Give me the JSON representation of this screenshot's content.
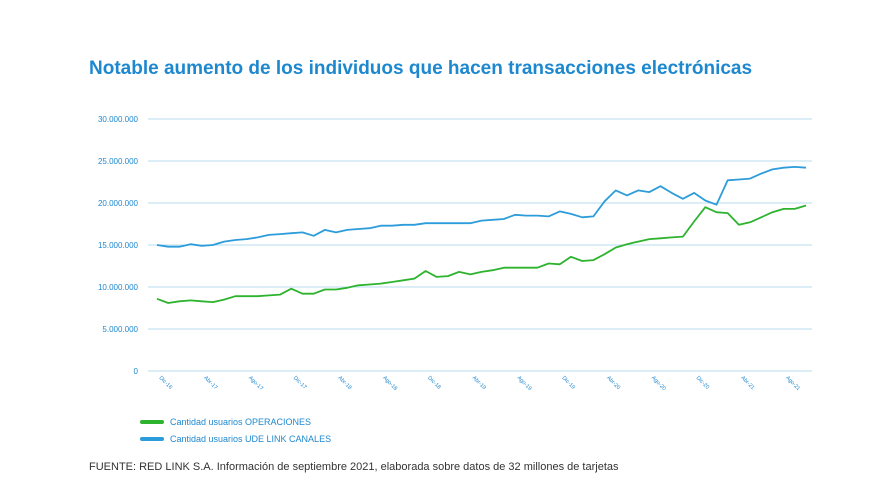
{
  "title": "Notable aumento de los individuos que hacen transacciones electrónicas",
  "source": "FUENTE: RED LINK S.A. Información de septiembre 2021, elaborada sobre datos de 32 millones de tarjetas",
  "colors": {
    "title": "#1e88cf",
    "grid": "#9fd3ee",
    "axis_text": "#1e88cf",
    "series_green": "#2db32e",
    "series_blue": "#2d9cdb"
  },
  "chart_data": {
    "type": "line",
    "ylim": [
      0,
      30000000
    ],
    "grid": true,
    "legend": "bottom-left",
    "y_ticks": [
      {
        "value": 0,
        "label": "0"
      },
      {
        "value": 5000000,
        "label": "5.000.000"
      },
      {
        "value": 10000000,
        "label": "10.000.000"
      },
      {
        "value": 15000000,
        "label": "15.000.000"
      },
      {
        "value": 20000000,
        "label": "20.000.000"
      },
      {
        "value": 25000000,
        "label": "25.000.000"
      },
      {
        "value": 30000000,
        "label": "30.000.000"
      }
    ],
    "x_ticks": [
      {
        "index": 0,
        "label": "Dic-16"
      },
      {
        "index": 4,
        "label": "Abr-17"
      },
      {
        "index": 8,
        "label": "Ago-17"
      },
      {
        "index": 12,
        "label": "Dic-17"
      },
      {
        "index": 16,
        "label": "Abr-18"
      },
      {
        "index": 20,
        "label": "Ago-18"
      },
      {
        "index": 24,
        "label": "Dic-18"
      },
      {
        "index": 28,
        "label": "Abr-19"
      },
      {
        "index": 32,
        "label": "Ago-19"
      },
      {
        "index": 36,
        "label": "Dic-19"
      },
      {
        "index": 40,
        "label": "Abr-20"
      },
      {
        "index": 44,
        "label": "Ago-20"
      },
      {
        "index": 48,
        "label": "Dic-20"
      },
      {
        "index": 52,
        "label": "Abr-21"
      },
      {
        "index": 56,
        "label": "Ago-21"
      }
    ],
    "series": [
      {
        "name": "Cantidad usuarios OPERACIONES",
        "color": "#2db32e",
        "values": [
          8600000,
          8100000,
          8300000,
          8400000,
          8300000,
          8200000,
          8500000,
          8900000,
          8900000,
          8900000,
          9000000,
          9100000,
          9800000,
          9200000,
          9200000,
          9700000,
          9700000,
          9900000,
          10200000,
          10300000,
          10400000,
          10600000,
          10800000,
          11000000,
          11900000,
          11200000,
          11300000,
          11800000,
          11500000,
          11800000,
          12000000,
          12300000,
          12300000,
          12300000,
          12300000,
          12800000,
          12700000,
          13600000,
          13100000,
          13200000,
          13900000,
          14700000,
          15100000,
          15400000,
          15700000,
          15800000,
          15900000,
          16000000,
          17800000,
          19500000,
          18900000,
          18800000,
          17400000,
          17700000,
          18300000,
          18900000,
          19300000,
          19300000,
          19700000
        ]
      },
      {
        "name": "Cantidad usuarios UDE LINK CANALES",
        "color": "#2d9cdb",
        "values": [
          15000000,
          14800000,
          14800000,
          15100000,
          14900000,
          15000000,
          15400000,
          15600000,
          15700000,
          15900000,
          16200000,
          16300000,
          16400000,
          16500000,
          16100000,
          16800000,
          16500000,
          16800000,
          16900000,
          17000000,
          17300000,
          17300000,
          17400000,
          17400000,
          17600000,
          17600000,
          17600000,
          17600000,
          17600000,
          17900000,
          18000000,
          18100000,
          18600000,
          18500000,
          18500000,
          18400000,
          19000000,
          18700000,
          18300000,
          18400000,
          20200000,
          21500000,
          20900000,
          21500000,
          21300000,
          22000000,
          21200000,
          20500000,
          21200000,
          20300000,
          19800000,
          22700000,
          22800000,
          22900000,
          23500000,
          24000000,
          24200000,
          24300000,
          24200000
        ]
      }
    ]
  }
}
